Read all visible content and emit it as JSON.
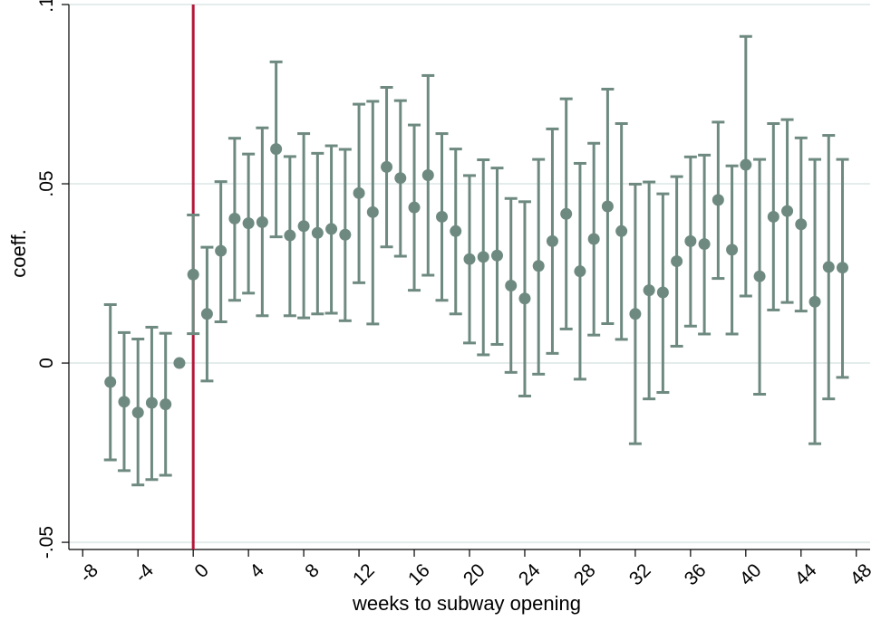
{
  "chart_data": {
    "type": "scatter",
    "title": "",
    "xlabel": "weeks to subway opening",
    "ylabel": "coeff.",
    "xlim": [
      -9,
      49
    ],
    "ylim": [
      -0.052,
      0.1
    ],
    "x_ticks": [
      -8,
      -4,
      0,
      4,
      8,
      12,
      16,
      20,
      24,
      28,
      32,
      36,
      40,
      44,
      48
    ],
    "x_tick_labels": [
      "-8",
      "-4",
      "0",
      "4",
      "8",
      "12",
      "16",
      "20",
      "24",
      "28",
      "32",
      "36",
      "40",
      "44",
      "48"
    ],
    "y_ticks": [
      -0.05,
      0,
      0.05,
      0.1
    ],
    "y_tick_labels": [
      "-.05",
      "0",
      ".05",
      ".1"
    ],
    "grid": true,
    "vertical_line": {
      "x": 0,
      "color": "#b5163a"
    },
    "series": [
      {
        "marker_color": "#6e8a80",
        "x": [
          -6,
          -5,
          -4,
          -3,
          -2,
          -1,
          0,
          1,
          2,
          3,
          4,
          5,
          6,
          7,
          8,
          9,
          10,
          11,
          12,
          13,
          14,
          15,
          16,
          17,
          18,
          19,
          20,
          21,
          22,
          23,
          24,
          25,
          26,
          27,
          28,
          29,
          30,
          31,
          32,
          33,
          34,
          35,
          36,
          37,
          38,
          39,
          40,
          41,
          42,
          43,
          44,
          45,
          46,
          47
        ],
        "y": [
          -0.0053,
          -0.0108,
          -0.0138,
          -0.0111,
          -0.0115,
          0,
          0.0247,
          0.0137,
          0.0313,
          0.0403,
          0.039,
          0.0393,
          0.0597,
          0.0356,
          0.0382,
          0.0363,
          0.0374,
          0.0358,
          0.0474,
          0.0421,
          0.0547,
          0.0516,
          0.0434,
          0.0524,
          0.0408,
          0.0368,
          0.029,
          0.0296,
          0.03,
          0.0216,
          0.018,
          0.0271,
          0.034,
          0.0416,
          0.0256,
          0.0346,
          0.0437,
          0.0368,
          0.0137,
          0.0203,
          0.0197,
          0.0284,
          0.034,
          0.0332,
          0.0455,
          0.0316,
          0.0553,
          0.0242,
          0.0408,
          0.0424,
          0.0387,
          0.0171,
          0.0268,
          0.0266
        ],
        "ci_low": [
          -0.027,
          -0.03,
          -0.034,
          -0.0325,
          -0.0313,
          0,
          0.0082,
          -0.005,
          0.0115,
          0.0175,
          0.0195,
          0.0132,
          0.0352,
          0.0132,
          0.0126,
          0.0137,
          0.0139,
          0.0118,
          0.0224,
          0.0109,
          0.0324,
          0.0298,
          0.0203,
          0.0245,
          0.0175,
          0.0137,
          0.0056,
          0.0023,
          0.0052,
          -0.0026,
          -0.0092,
          -0.0031,
          0.0027,
          0.0095,
          -0.0045,
          0.0078,
          0.011,
          0.0066,
          -0.0225,
          -0.01,
          -0.0082,
          0.0047,
          0.0103,
          0.0081,
          0.0236,
          0.0081,
          0.0187,
          -0.0087,
          0.0148,
          0.0169,
          0.0145,
          -0.0225,
          -0.01,
          -0.004
        ],
        "ci_high": [
          0.0163,
          0.0085,
          0.0067,
          0.01,
          0.0083,
          0,
          0.0413,
          0.0323,
          0.0506,
          0.0627,
          0.0583,
          0.0656,
          0.084,
          0.0576,
          0.064,
          0.0585,
          0.0606,
          0.0596,
          0.0722,
          0.073,
          0.0769,
          0.0732,
          0.0664,
          0.0802,
          0.064,
          0.0597,
          0.0523,
          0.0567,
          0.0544,
          0.0459,
          0.045,
          0.0568,
          0.0653,
          0.0737,
          0.0557,
          0.0613,
          0.0764,
          0.0668,
          0.0499,
          0.0505,
          0.0472,
          0.052,
          0.0575,
          0.058,
          0.0672,
          0.055,
          0.0911,
          0.0568,
          0.0668,
          0.0679,
          0.0628,
          0.0568,
          0.0635,
          0.0568
        ]
      }
    ]
  }
}
